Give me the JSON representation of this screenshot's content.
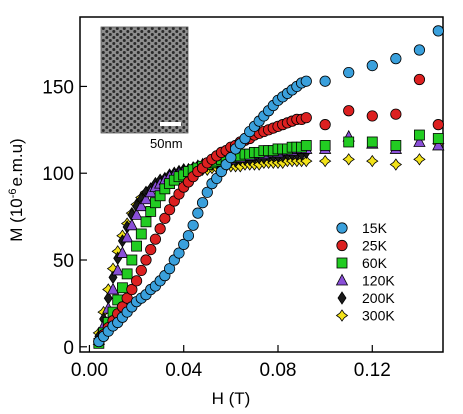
{
  "chart_data": {
    "type": "scatter",
    "xlabel": "H (T)",
    "ylabel_main": "M (10",
    "ylabel_exp": "-6",
    "ylabel_tail": "e.m.u)",
    "xlim": [
      -0.004,
      0.15
    ],
    "ylim": [
      -3,
      190
    ],
    "xticks": [
      0.0,
      0.04,
      0.08,
      0.12
    ],
    "xtick_labels": [
      "0.00",
      "0.04",
      "0.08",
      "0.12"
    ],
    "yticks": [
      0,
      50,
      100,
      150
    ],
    "ytick_labels": [
      "0",
      "50",
      "100",
      "150"
    ],
    "legend_position": "lower-right",
    "inset": {
      "description_visible": "SEM image of porous array",
      "scale_bar_label": "50nm"
    },
    "series": [
      {
        "name": "15K",
        "color": "#3aa0dc",
        "marker": "circle",
        "points": [
          [
            0.004,
            3
          ],
          [
            0.006,
            6
          ],
          [
            0.008,
            9
          ],
          [
            0.01,
            12
          ],
          [
            0.012,
            14
          ],
          [
            0.014,
            17
          ],
          [
            0.016,
            20
          ],
          [
            0.018,
            23
          ],
          [
            0.02,
            26
          ],
          [
            0.022,
            28
          ],
          [
            0.024,
            30
          ],
          [
            0.026,
            33
          ],
          [
            0.028,
            35
          ],
          [
            0.03,
            38
          ],
          [
            0.032,
            41
          ],
          [
            0.034,
            45
          ],
          [
            0.036,
            50
          ],
          [
            0.038,
            54
          ],
          [
            0.04,
            59
          ],
          [
            0.042,
            64
          ],
          [
            0.044,
            70
          ],
          [
            0.046,
            77
          ],
          [
            0.048,
            83
          ],
          [
            0.05,
            89
          ],
          [
            0.052,
            94
          ],
          [
            0.054,
            97
          ],
          [
            0.056,
            101
          ],
          [
            0.058,
            105
          ],
          [
            0.06,
            109
          ],
          [
            0.062,
            114
          ],
          [
            0.064,
            117
          ],
          [
            0.066,
            120
          ],
          [
            0.068,
            124
          ],
          [
            0.07,
            127
          ],
          [
            0.072,
            130
          ],
          [
            0.074,
            133
          ],
          [
            0.076,
            136
          ],
          [
            0.078,
            139
          ],
          [
            0.08,
            142
          ],
          [
            0.082,
            144
          ],
          [
            0.084,
            146
          ],
          [
            0.086,
            148
          ],
          [
            0.088,
            150
          ],
          [
            0.09,
            152
          ],
          [
            0.092,
            153
          ],
          [
            0.1,
            153
          ],
          [
            0.11,
            158
          ],
          [
            0.12,
            162
          ],
          [
            0.13,
            166
          ],
          [
            0.14,
            171
          ],
          [
            0.148,
            182
          ]
        ]
      },
      {
        "name": "25K",
        "color": "#dc2020",
        "marker": "circle",
        "points": [
          [
            0.004,
            3
          ],
          [
            0.006,
            7
          ],
          [
            0.008,
            11
          ],
          [
            0.01,
            15
          ],
          [
            0.012,
            19
          ],
          [
            0.014,
            23
          ],
          [
            0.016,
            28
          ],
          [
            0.018,
            33
          ],
          [
            0.02,
            38
          ],
          [
            0.022,
            44
          ],
          [
            0.024,
            50
          ],
          [
            0.026,
            56
          ],
          [
            0.028,
            62
          ],
          [
            0.03,
            68
          ],
          [
            0.032,
            74
          ],
          [
            0.034,
            79
          ],
          [
            0.036,
            84
          ],
          [
            0.038,
            88
          ],
          [
            0.04,
            92
          ],
          [
            0.042,
            95
          ],
          [
            0.044,
            98
          ],
          [
            0.046,
            101
          ],
          [
            0.048,
            103
          ],
          [
            0.05,
            106
          ],
          [
            0.052,
            108
          ],
          [
            0.054,
            110
          ],
          [
            0.056,
            112
          ],
          [
            0.058,
            113
          ],
          [
            0.06,
            115
          ],
          [
            0.062,
            116
          ],
          [
            0.064,
            118
          ],
          [
            0.066,
            119
          ],
          [
            0.068,
            120
          ],
          [
            0.07,
            122
          ],
          [
            0.072,
            123
          ],
          [
            0.074,
            124
          ],
          [
            0.076,
            125
          ],
          [
            0.078,
            126
          ],
          [
            0.08,
            127
          ],
          [
            0.082,
            128
          ],
          [
            0.084,
            129
          ],
          [
            0.086,
            130
          ],
          [
            0.088,
            131
          ],
          [
            0.09,
            131
          ],
          [
            0.092,
            132
          ],
          [
            0.1,
            128
          ],
          [
            0.11,
            136
          ],
          [
            0.12,
            133
          ],
          [
            0.13,
            134
          ],
          [
            0.14,
            154
          ],
          [
            0.148,
            128
          ]
        ]
      },
      {
        "name": "60K",
        "color": "#22cc22",
        "marker": "square",
        "points": [
          [
            0.004,
            2
          ],
          [
            0.006,
            8
          ],
          [
            0.008,
            14
          ],
          [
            0.01,
            20
          ],
          [
            0.012,
            27
          ],
          [
            0.014,
            34
          ],
          [
            0.016,
            42
          ],
          [
            0.018,
            50
          ],
          [
            0.02,
            58
          ],
          [
            0.022,
            65
          ],
          [
            0.024,
            72
          ],
          [
            0.026,
            78
          ],
          [
            0.028,
            83
          ],
          [
            0.03,
            87
          ],
          [
            0.032,
            91
          ],
          [
            0.034,
            94
          ],
          [
            0.036,
            96
          ],
          [
            0.038,
            98
          ],
          [
            0.04,
            99
          ],
          [
            0.042,
            101
          ],
          [
            0.044,
            102
          ],
          [
            0.046,
            103
          ],
          [
            0.048,
            104
          ],
          [
            0.05,
            105
          ],
          [
            0.052,
            106
          ],
          [
            0.054,
            107
          ],
          [
            0.056,
            108
          ],
          [
            0.058,
            108
          ],
          [
            0.06,
            109
          ],
          [
            0.062,
            110
          ],
          [
            0.064,
            110
          ],
          [
            0.066,
            111
          ],
          [
            0.068,
            111
          ],
          [
            0.07,
            112
          ],
          [
            0.072,
            112
          ],
          [
            0.074,
            113
          ],
          [
            0.076,
            113
          ],
          [
            0.078,
            113
          ],
          [
            0.08,
            114
          ],
          [
            0.082,
            114
          ],
          [
            0.084,
            114
          ],
          [
            0.086,
            115
          ],
          [
            0.088,
            115
          ],
          [
            0.09,
            115
          ],
          [
            0.092,
            116
          ],
          [
            0.1,
            116
          ],
          [
            0.11,
            118
          ],
          [
            0.12,
            118
          ],
          [
            0.13,
            116
          ],
          [
            0.14,
            122
          ],
          [
            0.148,
            120
          ]
        ]
      },
      {
        "name": "120K",
        "color": "#8a4fd8",
        "marker": "triangle",
        "points": [
          [
            0.004,
            4
          ],
          [
            0.006,
            12
          ],
          [
            0.008,
            22
          ],
          [
            0.01,
            33
          ],
          [
            0.012,
            44
          ],
          [
            0.014,
            54
          ],
          [
            0.016,
            63
          ],
          [
            0.018,
            70
          ],
          [
            0.02,
            76
          ],
          [
            0.022,
            81
          ],
          [
            0.024,
            85
          ],
          [
            0.026,
            89
          ],
          [
            0.028,
            92
          ],
          [
            0.03,
            94
          ],
          [
            0.032,
            96
          ],
          [
            0.034,
            98
          ],
          [
            0.036,
            99
          ],
          [
            0.038,
            100
          ],
          [
            0.04,
            101
          ],
          [
            0.042,
            102
          ],
          [
            0.044,
            103
          ],
          [
            0.046,
            104
          ],
          [
            0.048,
            105
          ],
          [
            0.05,
            105
          ],
          [
            0.052,
            106
          ],
          [
            0.054,
            107
          ],
          [
            0.056,
            107
          ],
          [
            0.058,
            108
          ],
          [
            0.06,
            108
          ],
          [
            0.062,
            109
          ],
          [
            0.064,
            109
          ],
          [
            0.066,
            110
          ],
          [
            0.068,
            110
          ],
          [
            0.07,
            111
          ],
          [
            0.072,
            111
          ],
          [
            0.074,
            111
          ],
          [
            0.076,
            112
          ],
          [
            0.078,
            112
          ],
          [
            0.08,
            112
          ],
          [
            0.082,
            113
          ],
          [
            0.084,
            113
          ],
          [
            0.086,
            113
          ],
          [
            0.088,
            114
          ],
          [
            0.09,
            114
          ],
          [
            0.092,
            114
          ],
          [
            0.1,
            114
          ],
          [
            0.11,
            121
          ],
          [
            0.12,
            117
          ],
          [
            0.13,
            114
          ],
          [
            0.14,
            118
          ],
          [
            0.148,
            116
          ]
        ]
      },
      {
        "name": "200K",
        "color": "#1a1a1a",
        "marker": "diamond",
        "points": [
          [
            0.004,
            6
          ],
          [
            0.006,
            16
          ],
          [
            0.008,
            28
          ],
          [
            0.01,
            40
          ],
          [
            0.012,
            51
          ],
          [
            0.014,
            61
          ],
          [
            0.016,
            69
          ],
          [
            0.018,
            76
          ],
          [
            0.02,
            81
          ],
          [
            0.022,
            85
          ],
          [
            0.024,
            89
          ],
          [
            0.026,
            91
          ],
          [
            0.028,
            94
          ],
          [
            0.03,
            96
          ],
          [
            0.032,
            97
          ],
          [
            0.034,
            99
          ],
          [
            0.036,
            100
          ],
          [
            0.038,
            101
          ],
          [
            0.04,
            102
          ],
          [
            0.042,
            102
          ],
          [
            0.044,
            103
          ],
          [
            0.046,
            104
          ],
          [
            0.048,
            104
          ],
          [
            0.05,
            105
          ],
          [
            0.052,
            105
          ],
          [
            0.054,
            106
          ],
          [
            0.056,
            106
          ],
          [
            0.058,
            107
          ],
          [
            0.06,
            107
          ],
          [
            0.062,
            107
          ],
          [
            0.064,
            108
          ],
          [
            0.066,
            108
          ],
          [
            0.068,
            108
          ],
          [
            0.07,
            109
          ],
          [
            0.072,
            109
          ],
          [
            0.074,
            109
          ],
          [
            0.076,
            110
          ],
          [
            0.078,
            110
          ],
          [
            0.08,
            110
          ],
          [
            0.082,
            110
          ],
          [
            0.084,
            111
          ],
          [
            0.086,
            111
          ],
          [
            0.088,
            111
          ],
          [
            0.09,
            111
          ],
          [
            0.092,
            112
          ]
        ]
      },
      {
        "name": "300K",
        "color": "#f2e21a",
        "marker": "star",
        "points": [
          [
            0.004,
            8
          ],
          [
            0.006,
            20
          ],
          [
            0.008,
            33
          ],
          [
            0.01,
            45
          ],
          [
            0.012,
            55
          ],
          [
            0.014,
            64
          ],
          [
            0.016,
            71
          ],
          [
            0.018,
            77
          ],
          [
            0.02,
            82
          ],
          [
            0.022,
            86
          ],
          [
            0.024,
            89
          ],
          [
            0.026,
            91
          ],
          [
            0.028,
            93
          ],
          [
            0.03,
            95
          ],
          [
            0.032,
            96
          ],
          [
            0.034,
            97
          ],
          [
            0.036,
            98
          ],
          [
            0.038,
            99
          ],
          [
            0.04,
            100
          ],
          [
            0.042,
            100
          ],
          [
            0.044,
            101
          ],
          [
            0.046,
            101
          ],
          [
            0.048,
            102
          ],
          [
            0.05,
            102
          ],
          [
            0.052,
            103
          ],
          [
            0.054,
            103
          ],
          [
            0.056,
            103
          ],
          [
            0.058,
            104
          ],
          [
            0.06,
            104
          ],
          [
            0.062,
            104
          ],
          [
            0.064,
            104
          ],
          [
            0.066,
            105
          ],
          [
            0.068,
            105
          ],
          [
            0.07,
            105
          ],
          [
            0.072,
            105
          ],
          [
            0.074,
            106
          ],
          [
            0.076,
            106
          ],
          [
            0.078,
            106
          ],
          [
            0.08,
            106
          ],
          [
            0.082,
            106
          ],
          [
            0.084,
            107
          ],
          [
            0.086,
            107
          ],
          [
            0.088,
            107
          ],
          [
            0.09,
            107
          ],
          [
            0.092,
            107
          ],
          [
            0.1,
            107
          ],
          [
            0.11,
            108
          ],
          [
            0.12,
            107
          ],
          [
            0.13,
            105
          ],
          [
            0.14,
            108
          ],
          [
            0.148,
            117
          ]
        ]
      }
    ]
  }
}
